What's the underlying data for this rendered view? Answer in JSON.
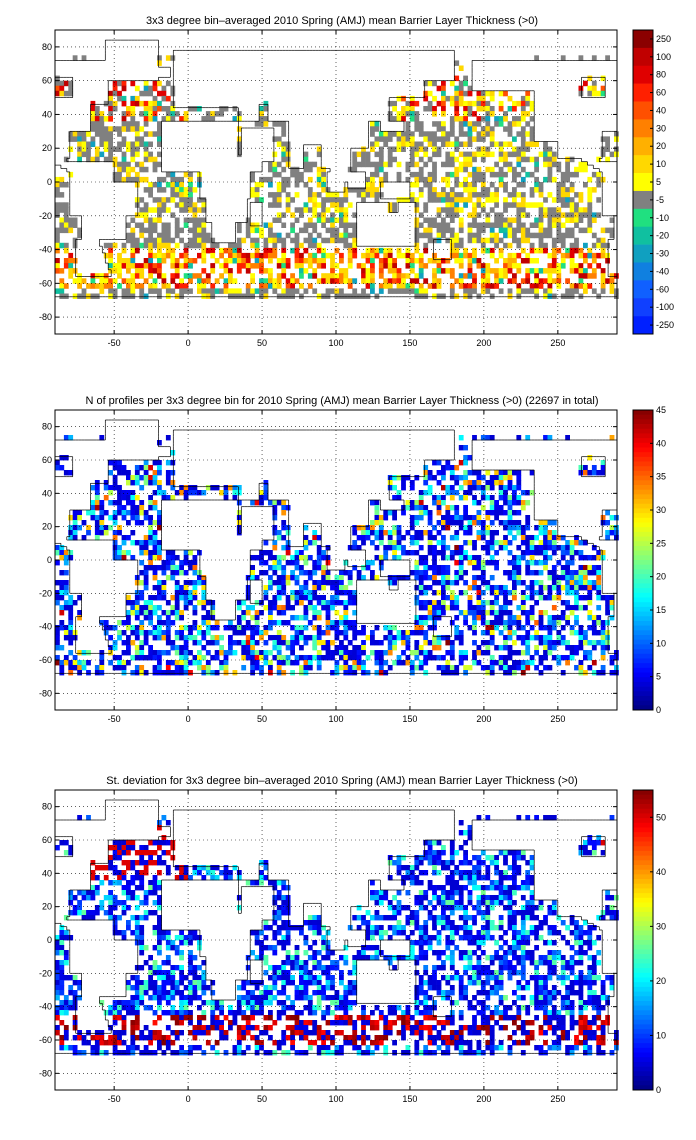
{
  "chart_data": [
    {
      "type": "heatmap",
      "title": "3x3 degree bin–averaged 2010 Spring (AMJ) mean Barrier Layer Thickness (>0)",
      "xlim": [
        -90,
        290
      ],
      "ylim": [
        -90,
        90
      ],
      "xticks": [
        -50,
        0,
        50,
        100,
        150,
        200,
        250
      ],
      "yticks": [
        80,
        60,
        40,
        20,
        0,
        -20,
        -40,
        -60,
        -80
      ],
      "grid": true,
      "colorbar": {
        "scale": "discrete",
        "labels": [
          "250",
          "100",
          "80",
          "60",
          "40",
          "30",
          "20",
          "10",
          "5",
          "-5",
          "-10",
          "-20",
          "-30",
          "-40",
          "-60",
          "-100",
          "-250"
        ],
        "colors": [
          "#8B0000",
          "#C00000",
          "#E00000",
          "#FF2000",
          "#FF5000",
          "#FF8000",
          "#FFB000",
          "#FFD800",
          "#FFFF00",
          "#808080",
          "#20E080",
          "#10C0A0",
          "#10A0C0",
          "#1080E0",
          "#1060FF",
          "#1040FF",
          "#0020FF"
        ]
      },
      "palette": "blt"
    },
    {
      "type": "heatmap",
      "title": "N of profiles per 3x3 degree bin for 2010 Spring (AMJ) mean Barrier Layer Thickness (>0) (22697 in total)",
      "xlim": [
        -90,
        290
      ],
      "ylim": [
        -90,
        90
      ],
      "xticks": [
        -50,
        0,
        50,
        100,
        150,
        200,
        250
      ],
      "yticks": [
        80,
        60,
        40,
        20,
        0,
        -20,
        -40,
        -60,
        -80
      ],
      "grid": true,
      "colorbar": {
        "scale": "continuous",
        "min": 0,
        "max": 45,
        "ticks": [
          0,
          5,
          10,
          15,
          20,
          25,
          30,
          35,
          40,
          45
        ]
      },
      "palette": "jet-low"
    },
    {
      "type": "heatmap",
      "title": "St. deviation for 3x3 degree bin–averaged 2010 Spring (AMJ) mean Barrier Layer Thickness (>0)",
      "xlim": [
        -90,
        290
      ],
      "ylim": [
        -90,
        90
      ],
      "xticks": [
        -50,
        0,
        50,
        100,
        150,
        200,
        250
      ],
      "yticks": [
        80,
        60,
        40,
        20,
        0,
        -20,
        -40,
        -60,
        -80
      ],
      "grid": true,
      "colorbar": {
        "scale": "continuous",
        "min": 0,
        "max": 55,
        "ticks": [
          0,
          10,
          20,
          30,
          40,
          50
        ]
      },
      "palette": "jet-std"
    }
  ]
}
